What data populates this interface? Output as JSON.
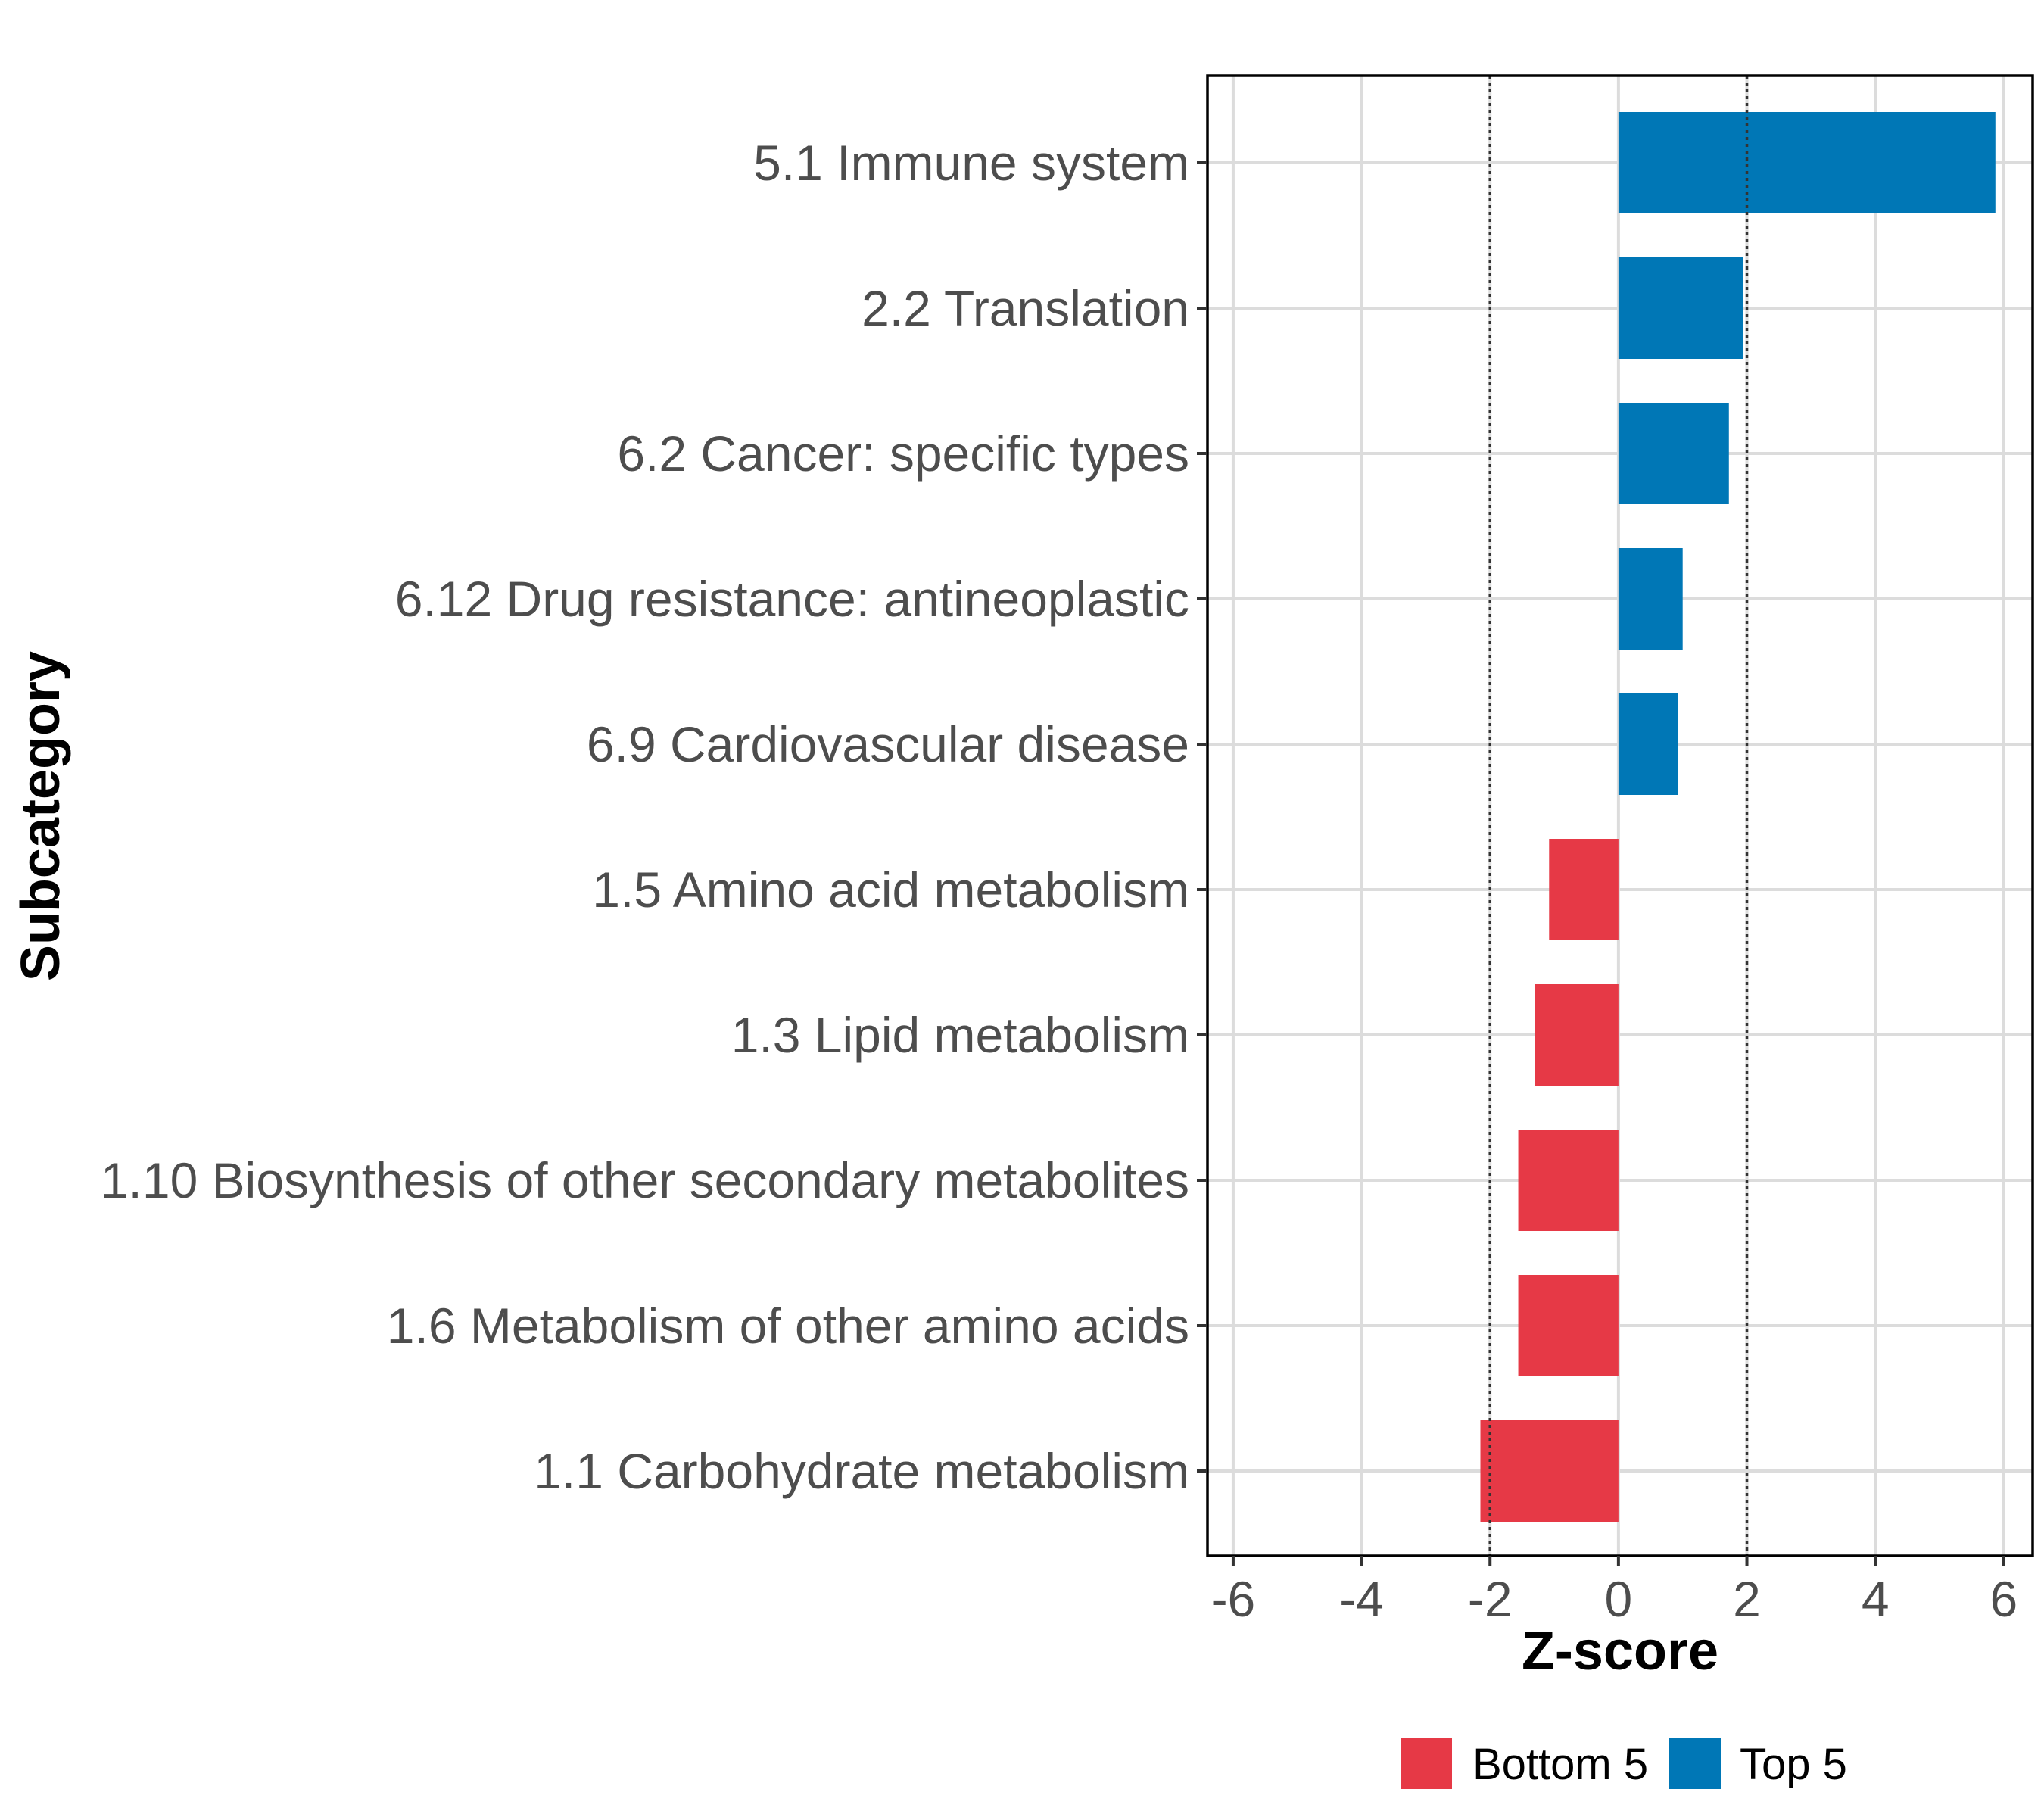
{
  "chart_data": {
    "type": "bar",
    "orientation": "horizontal",
    "title": "",
    "xlabel": "Z-score",
    "ylabel": "Subcategory",
    "xlim": [
      -6.4,
      6.45
    ],
    "xticks": [
      -6,
      -4,
      -2,
      0,
      2,
      4,
      6
    ],
    "xtick_labels": [
      "-6",
      "-4",
      "-2",
      "0",
      "2",
      "4",
      "6"
    ],
    "grid": true,
    "reference_lines": [
      -2,
      2
    ],
    "categories": [
      "5.1 Immune system",
      "2.2 Translation",
      "6.2 Cancer: specific types",
      "6.12 Drug resistance: antineoplastic",
      "6.9 Cardiovascular disease",
      "1.5 Amino acid metabolism",
      "1.3 Lipid metabolism",
      "1.10 Biosynthesis of other secondary metabolites",
      "1.6 Metabolism of other amino acids",
      "1.1 Carbohydrate metabolism"
    ],
    "values": [
      5.87,
      1.94,
      1.72,
      1.0,
      0.93,
      -1.08,
      -1.3,
      -1.56,
      -1.56,
      -2.15
    ],
    "groups": [
      "Top 5",
      "Top 5",
      "Top 5",
      "Top 5",
      "Top 5",
      "Bottom 5",
      "Bottom 5",
      "Bottom 5",
      "Bottom 5",
      "Bottom 5"
    ],
    "legend": {
      "position": "bottom",
      "entries": [
        {
          "name": "Bottom 5",
          "color": "#E63946"
        },
        {
          "name": "Top 5",
          "color": "#0077B6"
        }
      ]
    }
  }
}
